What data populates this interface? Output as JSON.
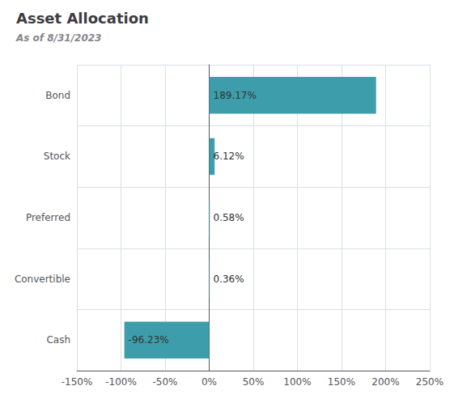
{
  "chart_data": {
    "type": "bar",
    "orientation": "horizontal",
    "title": "Asset Allocation",
    "subtitle": "As of 8/31/2023",
    "categories": [
      "Bond",
      "Stock",
      "Preferred",
      "Convertible",
      "Cash"
    ],
    "values": [
      189.17,
      6.12,
      0.58,
      0.36,
      -96.23
    ],
    "value_labels": [
      "189.17%",
      "6.12%",
      "0.58%",
      "0.36%",
      "-96.23%"
    ],
    "data_labels": true,
    "color": "#3d9daa",
    "xlim": [
      -150,
      250
    ],
    "xticks": [
      {
        "value": -150,
        "label": "-150%"
      },
      {
        "value": -100,
        "label": "-100%"
      },
      {
        "value": -50,
        "label": "-50%"
      },
      {
        "value": 0,
        "label": "0%"
      },
      {
        "value": 50,
        "label": "50%"
      },
      {
        "value": 100,
        "label": "100%"
      },
      {
        "value": 150,
        "label": "150%"
      },
      {
        "value": 200,
        "label": "200%"
      },
      {
        "value": 250,
        "label": "250%"
      }
    ],
    "grid": true
  }
}
